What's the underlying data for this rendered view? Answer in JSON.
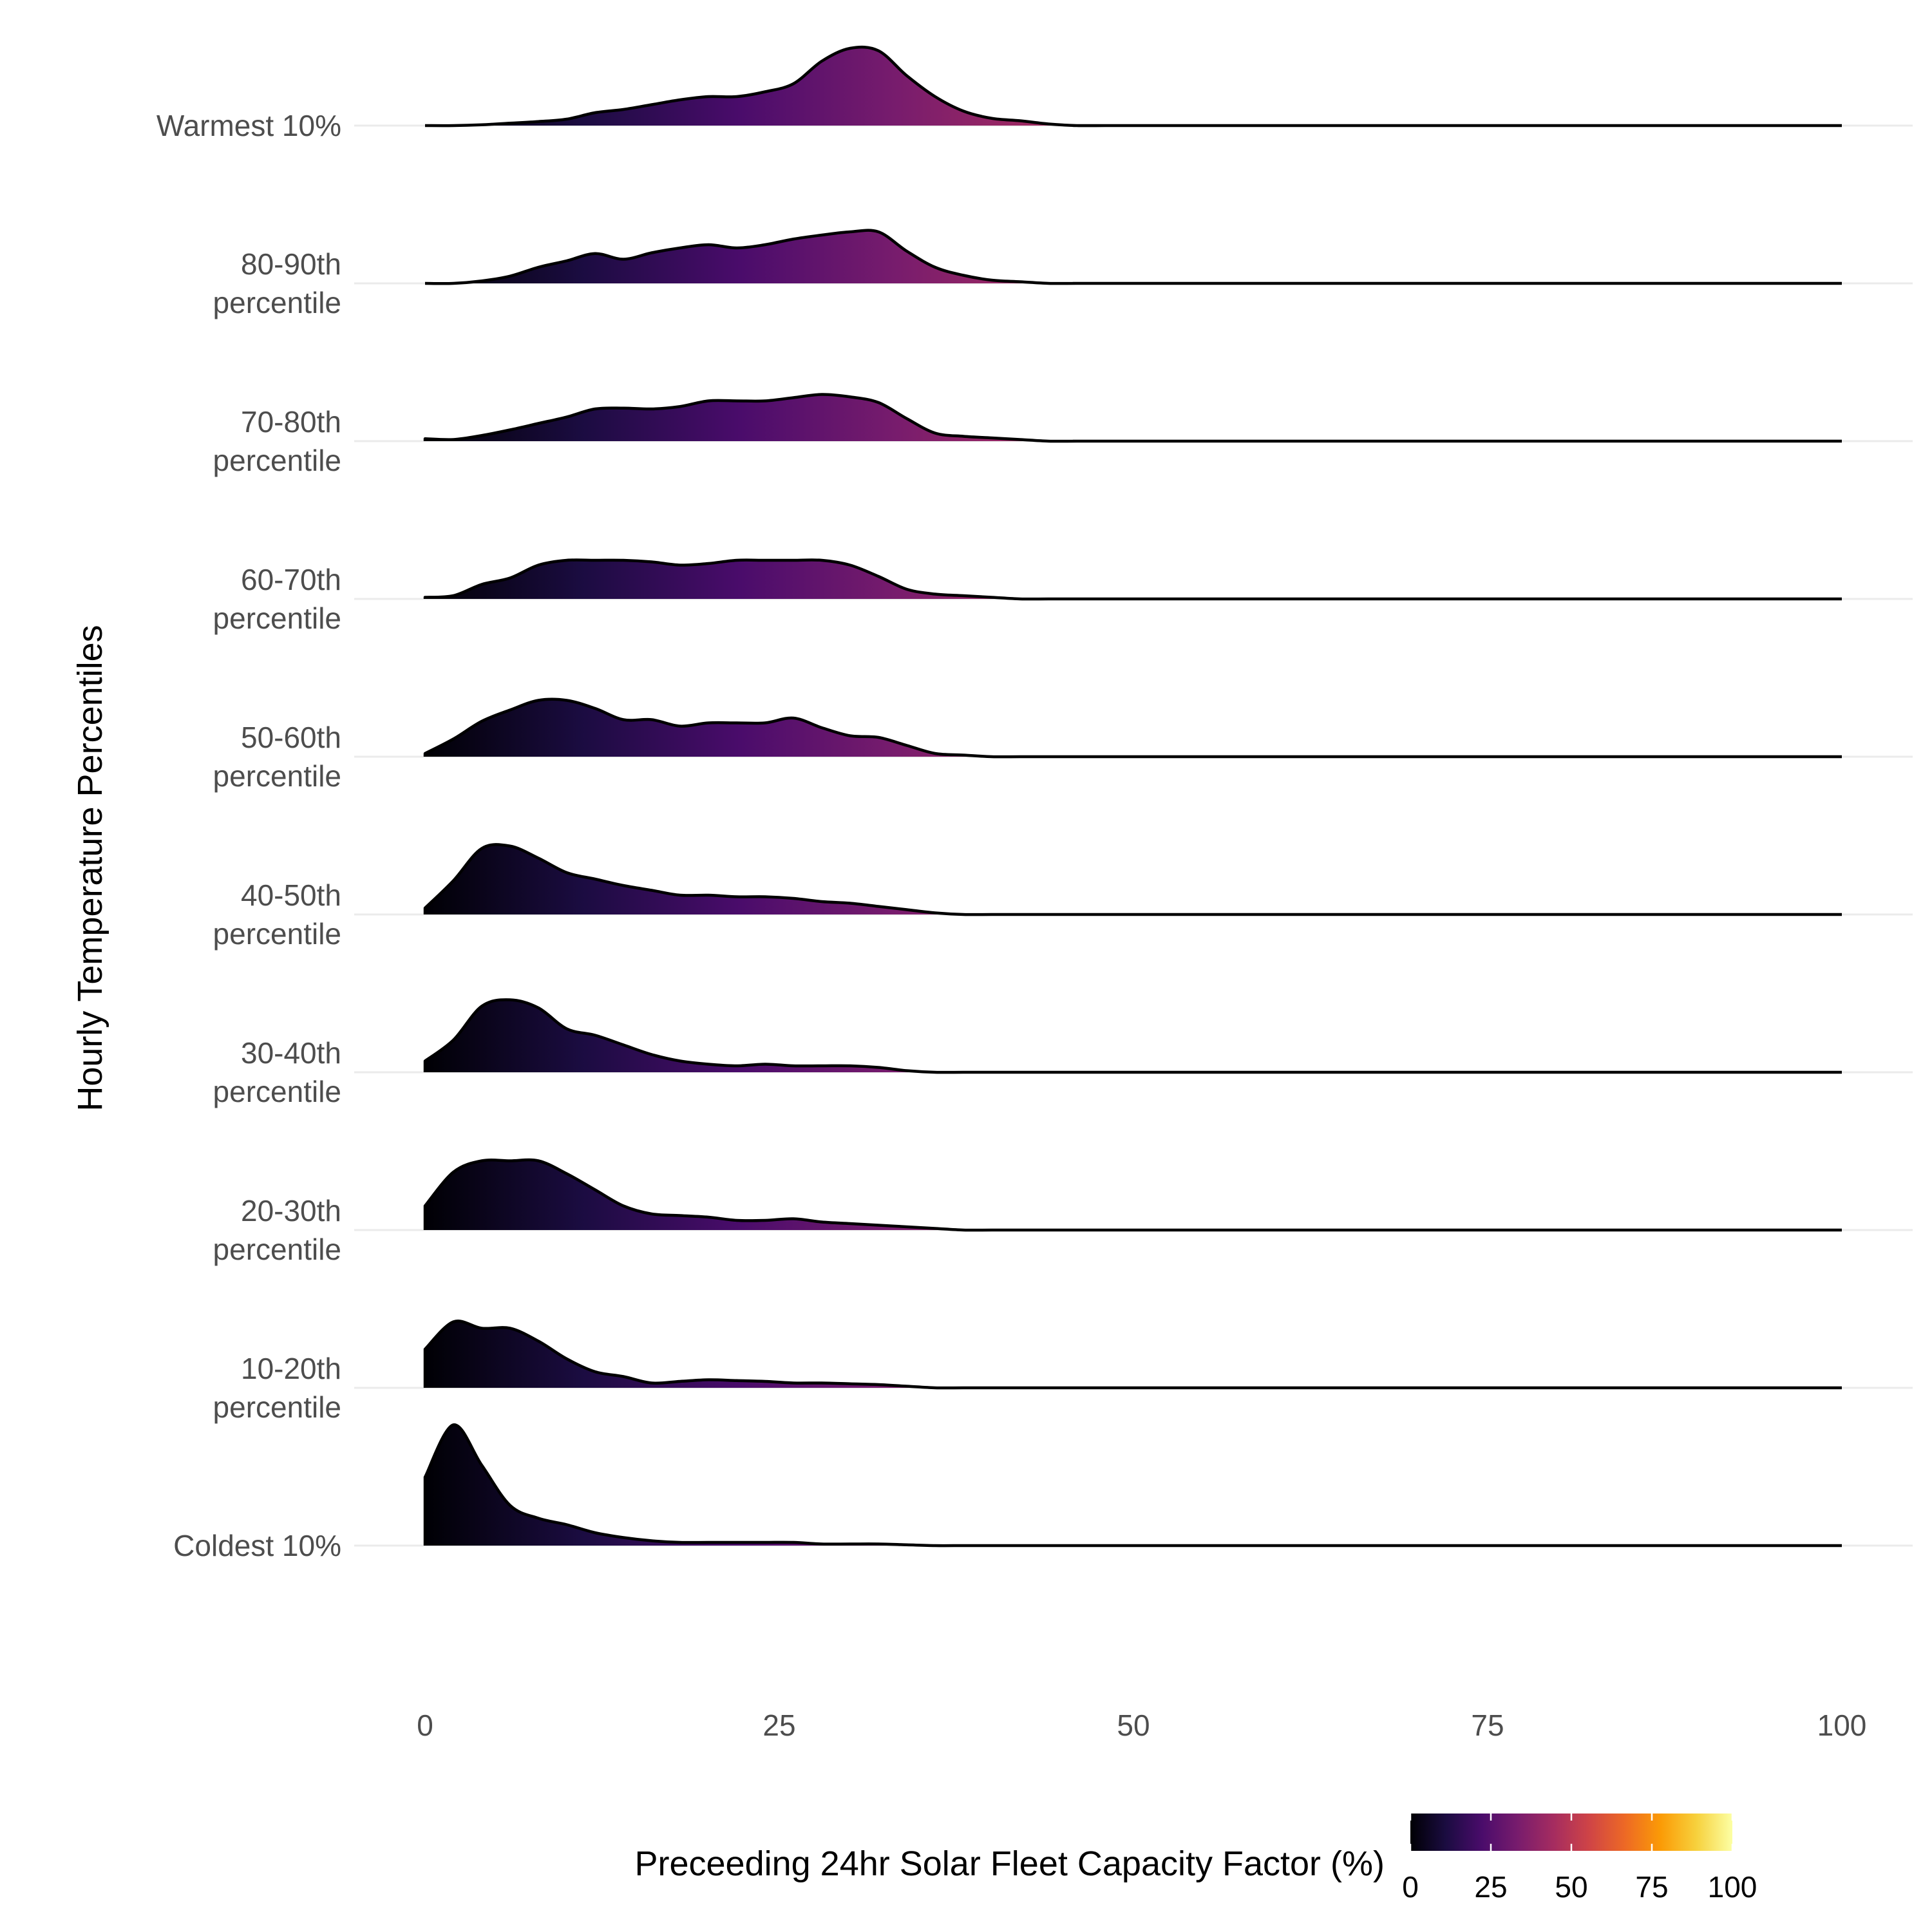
{
  "chart_data": {
    "type": "ridgeline",
    "title": "",
    "xlabel": "Preceeding 24hr Solar Fleet Capacity Factor (%)",
    "ylabel": "Hourly Temperature Percentiles",
    "xlim": [
      0,
      100
    ],
    "x_ticks": [
      "0",
      "25",
      "50",
      "75",
      "100"
    ],
    "grid": "horizontal",
    "color_scale": {
      "name": "inferno",
      "range": [
        0,
        100
      ],
      "ticks": [
        "0",
        "25",
        "50",
        "75",
        "100"
      ],
      "stops": [
        "#000004",
        "#1b0c41",
        "#4a0c6b",
        "#781c6d",
        "#a52c60",
        "#cf4446",
        "#ed6925",
        "#fb9b06",
        "#f7d13d",
        "#fcffa4"
      ]
    },
    "legend_position": "bottom",
    "x": [
      0,
      2,
      4,
      6,
      8,
      10,
      12,
      14,
      16,
      18,
      20,
      22,
      24,
      26,
      28,
      30,
      32,
      34,
      36,
      38,
      40,
      42,
      44,
      46,
      48,
      50,
      100
    ],
    "series": [
      {
        "name": [
          "Warmest 10%"
        ],
        "density": [
          0,
          0,
          0.01,
          0.03,
          0.05,
          0.08,
          0.16,
          0.2,
          0.26,
          0.32,
          0.36,
          0.36,
          0.42,
          0.52,
          0.8,
          0.96,
          0.93,
          0.62,
          0.36,
          0.18,
          0.09,
          0.06,
          0.02,
          0,
          0,
          0,
          0
        ]
      },
      {
        "name": [
          "80-90th",
          "percentile"
        ],
        "density": [
          0,
          0,
          0.03,
          0.09,
          0.2,
          0.28,
          0.37,
          0.3,
          0.38,
          0.44,
          0.48,
          0.44,
          0.48,
          0.55,
          0.6,
          0.64,
          0.64,
          0.4,
          0.2,
          0.1,
          0.04,
          0.02,
          0,
          0,
          0,
          0,
          0
        ]
      },
      {
        "name": [
          "70-80th",
          "percentile"
        ],
        "density": [
          0.03,
          0.02,
          0.07,
          0.14,
          0.22,
          0.3,
          0.4,
          0.41,
          0.4,
          0.43,
          0.5,
          0.5,
          0.5,
          0.54,
          0.58,
          0.55,
          0.48,
          0.28,
          0.1,
          0.06,
          0.04,
          0.02,
          0,
          0,
          0,
          0,
          0
        ]
      },
      {
        "name": [
          "60-70th",
          "percentile"
        ],
        "density": [
          0.02,
          0.04,
          0.18,
          0.26,
          0.42,
          0.48,
          0.48,
          0.48,
          0.46,
          0.42,
          0.44,
          0.48,
          0.48,
          0.48,
          0.48,
          0.42,
          0.28,
          0.12,
          0.06,
          0.04,
          0.02,
          0,
          0,
          0,
          0,
          0,
          0
        ]
      },
      {
        "name": [
          "50-60th",
          "percentile"
        ],
        "density": [
          0.04,
          0.22,
          0.44,
          0.58,
          0.7,
          0.7,
          0.6,
          0.46,
          0.46,
          0.38,
          0.42,
          0.42,
          0.42,
          0.48,
          0.36,
          0.26,
          0.24,
          0.14,
          0.04,
          0.02,
          0,
          0,
          0,
          0,
          0,
          0,
          0
        ]
      },
      {
        "name": [
          "40-50th",
          "percentile"
        ],
        "density": [
          0.08,
          0.42,
          0.82,
          0.85,
          0.7,
          0.52,
          0.44,
          0.36,
          0.3,
          0.24,
          0.24,
          0.22,
          0.22,
          0.2,
          0.16,
          0.14,
          0.1,
          0.06,
          0.02,
          0,
          0,
          0,
          0,
          0,
          0,
          0,
          0
        ]
      },
      {
        "name": [
          "30-40th",
          "percentile"
        ],
        "density": [
          0.14,
          0.4,
          0.82,
          0.9,
          0.8,
          0.54,
          0.46,
          0.34,
          0.22,
          0.14,
          0.1,
          0.08,
          0.1,
          0.08,
          0.08,
          0.08,
          0.06,
          0.02,
          0,
          0,
          0,
          0,
          0,
          0,
          0,
          0,
          0
        ]
      },
      {
        "name": [
          "20-30th",
          "percentile"
        ],
        "density": [
          0.3,
          0.72,
          0.86,
          0.86,
          0.86,
          0.7,
          0.5,
          0.3,
          0.2,
          0.18,
          0.16,
          0.12,
          0.12,
          0.14,
          0.1,
          0.08,
          0.06,
          0.04,
          0.02,
          0,
          0,
          0,
          0,
          0,
          0,
          0,
          0
        ]
      },
      {
        "name": [
          "10-20th",
          "percentile"
        ],
        "density": [
          0.48,
          0.82,
          0.74,
          0.74,
          0.58,
          0.36,
          0.2,
          0.14,
          0.06,
          0.08,
          0.1,
          0.09,
          0.08,
          0.06,
          0.06,
          0.05,
          0.04,
          0.02,
          0,
          0,
          0,
          0,
          0,
          0,
          0,
          0,
          0
        ]
      },
      {
        "name": [
          "Coldest 10%"
        ],
        "density": [
          0.85,
          1.5,
          1.0,
          0.5,
          0.34,
          0.26,
          0.16,
          0.1,
          0.06,
          0.04,
          0.04,
          0.04,
          0.04,
          0.04,
          0.02,
          0.02,
          0.02,
          0.01,
          0,
          0,
          0,
          0,
          0,
          0,
          0,
          0,
          0
        ]
      }
    ]
  }
}
